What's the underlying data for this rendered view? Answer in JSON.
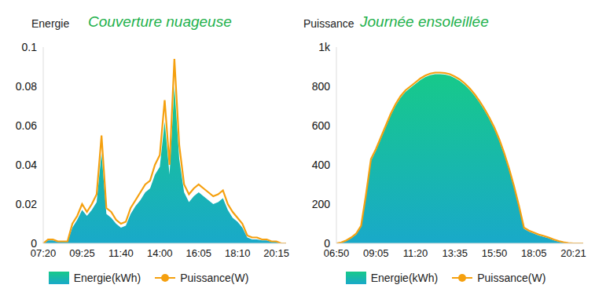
{
  "chart_data": [
    {
      "type": "area",
      "title": "Couverture nuageuse",
      "y_label": "Energie",
      "categories": [
        "07:20",
        null,
        null,
        null,
        null,
        null,
        null,
        null,
        "09:25",
        null,
        null,
        null,
        null,
        null,
        null,
        null,
        "11:40",
        null,
        null,
        null,
        null,
        null,
        null,
        null,
        "14:00",
        null,
        null,
        null,
        null,
        null,
        null,
        null,
        "16:05",
        null,
        null,
        null,
        null,
        null,
        null,
        null,
        "18:10",
        null,
        null,
        null,
        null,
        null,
        null,
        null,
        "20:15",
        null,
        null
      ],
      "series": [
        {
          "name": "Energie(kWh)",
          "type": "area",
          "color": "#17c98a",
          "values": [
            0,
            0.0015,
            0.0015,
            0.0008,
            0.0008,
            0.0008,
            0.008,
            0.012,
            0.017,
            0.014,
            0.017,
            0.021,
            0.046,
            0.015,
            0.013,
            0.01,
            0.008,
            0.009,
            0.015,
            0.019,
            0.022,
            0.026,
            0.028,
            0.035,
            0.039,
            0.062,
            0.035,
            0.08,
            0.043,
            0.026,
            0.021,
            0.024,
            0.026,
            0.024,
            0.022,
            0.02,
            0.021,
            0.023,
            0.017,
            0.013,
            0.011,
            0.008,
            0.003,
            0.002,
            0.002,
            0.0015,
            0.0015,
            0.0008,
            0.0008,
            0,
            0
          ]
        },
        {
          "name": "Puissance(W)",
          "type": "line",
          "color": "#f5a00f",
          "values": [
            0,
            0.002,
            0.002,
            0.001,
            0.001,
            0.001,
            0.01,
            0.014,
            0.02,
            0.016,
            0.02,
            0.025,
            0.055,
            0.018,
            0.016,
            0.012,
            0.01,
            0.011,
            0.018,
            0.022,
            0.026,
            0.03,
            0.032,
            0.04,
            0.045,
            0.073,
            0.04,
            0.094,
            0.05,
            0.03,
            0.025,
            0.028,
            0.03,
            0.028,
            0.026,
            0.024,
            0.025,
            0.027,
            0.02,
            0.016,
            0.013,
            0.01,
            0.004,
            0.003,
            0.003,
            0.002,
            0.002,
            0.001,
            0.001,
            0,
            0
          ]
        }
      ],
      "ylim": [
        0,
        0.1
      ],
      "yticks": [
        0,
        0.02,
        0.04,
        0.06,
        0.08,
        0.1
      ],
      "grid": false,
      "legend": "bottom"
    },
    {
      "type": "area",
      "title": "Journée ensoleillée",
      "y_label": "Puissance",
      "categories": [
        "06:50",
        null,
        null,
        null,
        null,
        null,
        null,
        null,
        "09:05",
        null,
        null,
        null,
        null,
        null,
        null,
        null,
        "11:20",
        null,
        null,
        null,
        null,
        null,
        null,
        null,
        "13:35",
        null,
        null,
        null,
        null,
        null,
        null,
        null,
        "15:50",
        null,
        null,
        null,
        null,
        null,
        null,
        null,
        "18:05",
        null,
        null,
        null,
        null,
        null,
        null,
        null,
        "20:21",
        null,
        null
      ],
      "series": [
        {
          "name": "Energie(kWh)",
          "type": "area",
          "color": "#17c98a",
          "values": [
            0,
            3,
            12,
            26,
            45,
            84,
            240,
            420,
            472,
            532,
            592,
            652,
            702,
            742,
            772,
            792,
            812,
            832,
            847,
            857,
            862,
            862,
            860,
            854,
            842,
            827,
            807,
            782,
            752,
            717,
            677,
            632,
            582,
            522,
            452,
            372,
            282,
            182,
            74,
            60,
            50,
            40,
            33,
            26,
            16,
            9,
            4,
            1,
            0,
            0,
            0
          ]
        },
        {
          "name": "Puissance(W)",
          "type": "line",
          "color": "#f5a00f",
          "values": [
            0,
            5,
            15,
            30,
            50,
            90,
            250,
            430,
            480,
            540,
            600,
            660,
            710,
            750,
            780,
            800,
            820,
            840,
            855,
            865,
            870,
            870,
            868,
            862,
            850,
            835,
            815,
            790,
            760,
            725,
            685,
            640,
            590,
            530,
            460,
            380,
            290,
            190,
            80,
            65,
            55,
            45,
            38,
            30,
            20,
            12,
            6,
            2,
            0,
            0,
            0
          ]
        }
      ],
      "ylim": [
        0,
        1000
      ],
      "yticks": [
        0,
        200,
        400,
        600,
        800,
        {
          "value": 1000,
          "label": "1k"
        }
      ],
      "grid": false,
      "legend": "bottom"
    }
  ]
}
